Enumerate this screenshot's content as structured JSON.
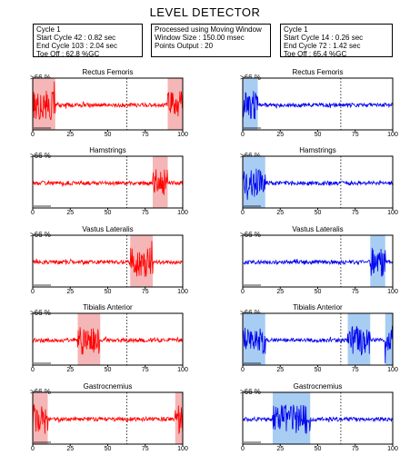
{
  "title": "LEVEL DETECTOR",
  "info_boxes": [
    {
      "lines": [
        "Cycle 1",
        "Start Cycle 42 : 0.82 sec",
        "End Cycle 103 : 2.04 sec",
        "Toe Off : 62.8 %GC"
      ]
    },
    {
      "lines": [
        "Processed using Moving Window",
        "Window Size : 150.00 msec",
        "Points Output : 20"
      ]
    },
    {
      "lines": [
        "Cycle 1",
        "Start Cycle 14 : 0.26 sec",
        "End Cycle 72 : 1.42 sec",
        "Toe Off : 65.4 %GC"
      ]
    }
  ],
  "y_label": ">66 %",
  "x_ticks": [
    "0",
    "25",
    "50",
    "75",
    "100"
  ],
  "colors": {
    "left_signal": "#ff0000",
    "left_highlight": "#f4b6b6",
    "right_signal": "#0000ee",
    "right_highlight": "#a8cdf2"
  },
  "chart_data": [
    {
      "type": "line",
      "title": "Rectus Femoris",
      "column": "left",
      "toe_off": 62.8,
      "highlight_ranges": [
        [
          0,
          15
        ],
        [
          90,
          100
        ]
      ],
      "xlim": [
        0,
        100
      ]
    },
    {
      "type": "line",
      "title": "Rectus Femoris",
      "column": "right",
      "toe_off": 65.4,
      "highlight_ranges": [
        [
          0,
          10
        ]
      ],
      "xlim": [
        0,
        100
      ]
    },
    {
      "type": "line",
      "title": "Hamstrings",
      "column": "left",
      "toe_off": 62.8,
      "highlight_ranges": [
        [
          80,
          90
        ]
      ],
      "xlim": [
        0,
        100
      ]
    },
    {
      "type": "line",
      "title": "Hamstrings",
      "column": "right",
      "toe_off": 65.4,
      "highlight_ranges": [
        [
          0,
          15
        ]
      ],
      "xlim": [
        0,
        100
      ]
    },
    {
      "type": "line",
      "title": "Vastus Lateralis",
      "column": "left",
      "toe_off": 62.8,
      "highlight_ranges": [
        [
          65,
          80
        ]
      ],
      "xlim": [
        0,
        100
      ]
    },
    {
      "type": "line",
      "title": "Vastus Lateralis",
      "column": "right",
      "toe_off": 65.4,
      "highlight_ranges": [
        [
          85,
          95
        ]
      ],
      "xlim": [
        0,
        100
      ]
    },
    {
      "type": "line",
      "title": "Tibialis Anterior",
      "column": "left",
      "toe_off": 62.8,
      "highlight_ranges": [
        [
          30,
          45
        ]
      ],
      "xlim": [
        0,
        100
      ]
    },
    {
      "type": "line",
      "title": "Tibialis Anterior",
      "column": "right",
      "toe_off": 65.4,
      "highlight_ranges": [
        [
          0,
          15
        ],
        [
          70,
          85
        ],
        [
          95,
          100
        ]
      ],
      "xlim": [
        0,
        100
      ]
    },
    {
      "type": "line",
      "title": "Gastrocnemius",
      "column": "left",
      "toe_off": 62.8,
      "highlight_ranges": [
        [
          0,
          10
        ],
        [
          95,
          100
        ]
      ],
      "xlim": [
        0,
        100
      ]
    },
    {
      "type": "line",
      "title": "Gastrocnemius",
      "column": "right",
      "toe_off": 65.4,
      "highlight_ranges": [
        [
          20,
          45
        ]
      ],
      "xlim": [
        0,
        100
      ]
    }
  ]
}
